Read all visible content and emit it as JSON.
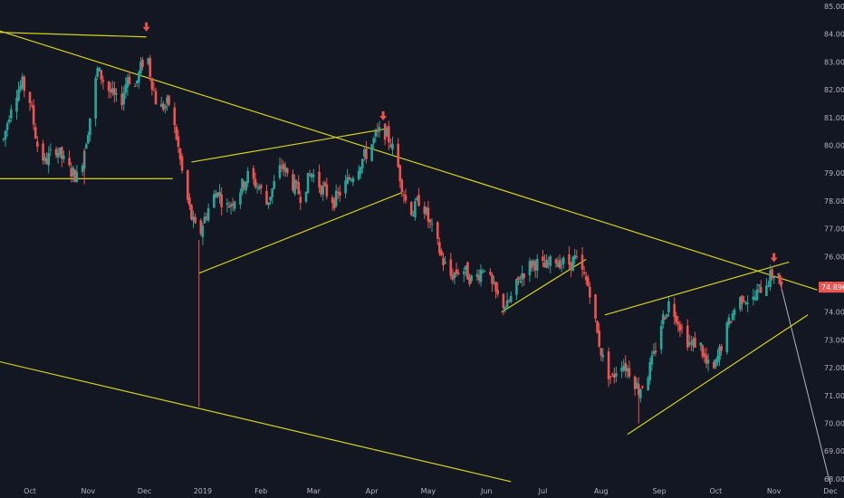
{
  "chart_data": {
    "type": "candlestick",
    "theme_colors": {
      "background": "#131722",
      "up": "#26a69a",
      "down": "#ef5350",
      "trendline": "#d6d11a",
      "marker": "#ef5350",
      "axis_text": "#b2b5be",
      "price_tag_bg": "#ef5350",
      "projection": "#b2b5be"
    },
    "y_axis": {
      "range": [
        67.8,
        85.2
      ],
      "ticks": [
        "85.000",
        "84.000",
        "83.000",
        "82.000",
        "81.000",
        "80.000",
        "79.000",
        "78.000",
        "77.000",
        "76.000",
        "75.000",
        "74.000",
        "73.000",
        "72.000",
        "71.000",
        "70.000",
        "69.000",
        "68.000"
      ],
      "last_price_label": "74.896",
      "last_price": 74.896
    },
    "x_axis": {
      "range": [
        0,
        414
      ],
      "ticks": [
        {
          "label": "Oct",
          "day": 14
        },
        {
          "label": "Nov",
          "day": 45
        },
        {
          "label": "Dec",
          "day": 75
        },
        {
          "label": "2019",
          "day": 106
        },
        {
          "label": "Feb",
          "day": 137
        },
        {
          "label": "Mar",
          "day": 165
        },
        {
          "label": "Apr",
          "day": 196
        },
        {
          "label": "May",
          "day": 226
        },
        {
          "label": "Jun",
          "day": 257
        },
        {
          "label": "Jul",
          "day": 287
        },
        {
          "label": "Aug",
          "day": 318
        },
        {
          "label": "Sep",
          "day": 349
        },
        {
          "label": "Oct",
          "day": 379
        },
        {
          "label": "Nov",
          "day": 410
        },
        {
          "label": "Dec",
          "day": 440
        }
      ]
    },
    "price_path": [
      [
        0,
        80.2
      ],
      [
        5,
        81.8
      ],
      [
        10,
        82.2
      ],
      [
        14,
        81.6
      ],
      [
        18,
        80.0
      ],
      [
        22,
        79.4
      ],
      [
        28,
        79.9
      ],
      [
        34,
        79.2
      ],
      [
        40,
        78.8
      ],
      [
        45,
        80.6
      ],
      [
        50,
        82.7
      ],
      [
        56,
        82.0
      ],
      [
        62,
        81.4
      ],
      [
        66,
        82.5
      ],
      [
        70,
        82.1
      ],
      [
        74,
        83.0
      ],
      [
        76,
        83.6
      ],
      [
        78,
        82.6
      ],
      [
        82,
        81.3
      ],
      [
        88,
        81.5
      ],
      [
        92,
        80.3
      ],
      [
        96,
        78.6
      ],
      [
        100,
        77.4
      ],
      [
        104,
        76.6
      ],
      [
        106,
        77.2
      ],
      [
        110,
        77.9
      ],
      [
        114,
        78.4
      ],
      [
        118,
        77.7
      ],
      [
        124,
        78.2
      ],
      [
        130,
        78.9
      ],
      [
        136,
        78.5
      ],
      [
        140,
        77.9
      ],
      [
        144,
        78.6
      ],
      [
        148,
        79.3
      ],
      [
        152,
        78.8
      ],
      [
        158,
        78.2
      ],
      [
        164,
        79.0
      ],
      [
        170,
        78.4
      ],
      [
        176,
        78.0
      ],
      [
        182,
        78.6
      ],
      [
        188,
        79.2
      ],
      [
        194,
        79.8
      ],
      [
        198,
        80.3
      ],
      [
        202,
        80.6
      ],
      [
        206,
        80.1
      ],
      [
        210,
        79.2
      ],
      [
        214,
        78.0
      ],
      [
        218,
        77.6
      ],
      [
        222,
        78.2
      ],
      [
        226,
        77.3
      ],
      [
        230,
        76.6
      ],
      [
        234,
        75.8
      ],
      [
        238,
        75.3
      ],
      [
        244,
        75.6
      ],
      [
        250,
        75.1
      ],
      [
        256,
        75.7
      ],
      [
        260,
        74.9
      ],
      [
        264,
        74.4
      ],
      [
        268,
        74.2
      ],
      [
        272,
        74.8
      ],
      [
        276,
        75.4
      ],
      [
        282,
        75.8
      ],
      [
        288,
        75.6
      ],
      [
        294,
        75.9
      ],
      [
        300,
        75.7
      ],
      [
        304,
        75.9
      ],
      [
        308,
        75.4
      ],
      [
        312,
        74.8
      ],
      [
        316,
        73.2
      ],
      [
        320,
        72.0
      ],
      [
        324,
        71.6
      ],
      [
        328,
        72.3
      ],
      [
        334,
        71.8
      ],
      [
        338,
        71.2
      ],
      [
        342,
        71.6
      ],
      [
        346,
        72.4
      ],
      [
        350,
        73.6
      ],
      [
        354,
        74.3
      ],
      [
        358,
        73.9
      ],
      [
        362,
        73.2
      ],
      [
        366,
        72.8
      ],
      [
        370,
        73.0
      ],
      [
        374,
        72.1
      ],
      [
        378,
        71.9
      ],
      [
        382,
        72.8
      ],
      [
        386,
        73.6
      ],
      [
        390,
        74.3
      ],
      [
        394,
        74.6
      ],
      [
        398,
        74.3
      ],
      [
        402,
        74.8
      ],
      [
        406,
        75.1
      ],
      [
        410,
        75.4
      ],
      [
        412,
        75.2
      ],
      [
        414,
        74.896
      ]
    ],
    "wicks": [
      {
        "day": 104,
        "low": 70.6
      },
      {
        "day": 43,
        "low": 78.6
      },
      {
        "day": 338,
        "low": 70.0
      }
    ],
    "markers": [
      {
        "day": 76,
        "price": 84.0
      },
      {
        "day": 202,
        "price": 80.8
      },
      {
        "day": 410,
        "price": 75.7
      }
    ],
    "trendlines": [
      {
        "from": [
          -20,
          84.5
        ],
        "to": [
          433,
          74.8
        ]
      },
      {
        "from": [
          -20,
          84.1
        ],
        "to": [
          76,
          83.9
        ]
      },
      {
        "from": [
          -20,
          78.8
        ],
        "to": [
          90,
          78.8
        ]
      },
      {
        "from": [
          100,
          79.4
        ],
        "to": [
          204,
          80.6
        ]
      },
      {
        "from": [
          104,
          75.4
        ],
        "to": [
          212,
          78.3
        ]
      },
      {
        "from": [
          -20,
          72.5
        ],
        "to": [
          270,
          67.9
        ]
      },
      {
        "from": [
          265,
          74.0
        ],
        "to": [
          310,
          75.9
        ]
      },
      {
        "from": [
          320,
          73.9
        ],
        "to": [
          418,
          75.8
        ]
      },
      {
        "from": [
          332,
          69.6
        ],
        "to": [
          428,
          73.9
        ]
      }
    ],
    "projection_line": {
      "from": [
        412,
        75.4
      ],
      "to": [
        440,
        67.8
      ]
    }
  }
}
